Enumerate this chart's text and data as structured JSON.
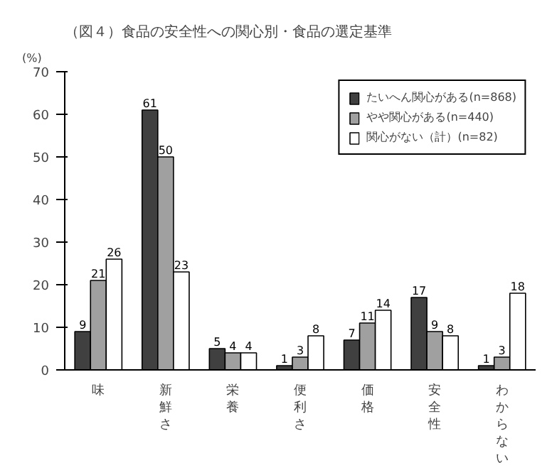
{
  "chart_data": {
    "type": "bar",
    "title": "（図４）食品の安全性への関心別・食品の選定基準",
    "ylabel": "(%)",
    "categories": [
      "味",
      "新鮮さ",
      "栄養",
      "便利さ",
      "価格",
      "安全性",
      "わからない"
    ],
    "series": [
      {
        "name": "たいへん関心がある(n=868)",
        "color": "#404040",
        "values": [
          9,
          61,
          5,
          1,
          7,
          17,
          1
        ]
      },
      {
        "name": "やや関心がある(n=440)",
        "color": "#a0a0a0",
        "values": [
          21,
          50,
          4,
          3,
          11,
          9,
          3
        ]
      },
      {
        "name": "関心がない（計）(n=82)",
        "color": "#ffffff",
        "values": [
          26,
          23,
          4,
          8,
          14,
          8,
          18
        ]
      }
    ],
    "ylim": [
      0,
      70
    ],
    "yticks": [
      0,
      10,
      20,
      30,
      40,
      50,
      60,
      70
    ],
    "grid": false,
    "legend": "top right",
    "data_labels": true
  }
}
